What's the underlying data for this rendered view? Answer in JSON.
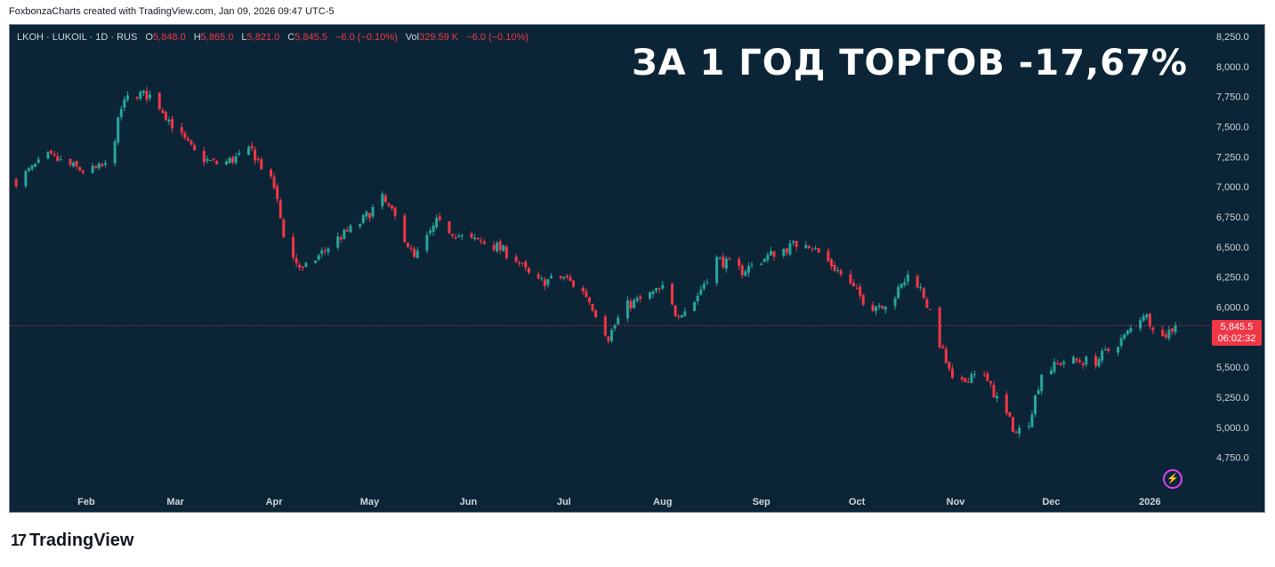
{
  "credit": "FoxbonzaCharts created with TradingView.com, Jan 09, 2026 09:47 UTC-5",
  "legend": {
    "symbol": "LKOH · LUKOIL · 1D · RUS",
    "o_label": "O",
    "o_value": "5,848.0",
    "h_label": "H",
    "h_value": "5,865.0",
    "l_label": "L",
    "l_value": "5,821.0",
    "c_label": "C",
    "c_value": "5,845.5",
    "change": "−6.0 (−0.10%)",
    "vol_label": "Vol",
    "vol_value": "329.59 K",
    "vol_change": "−6.0 (−0.10%)"
  },
  "headline": "ЗА 1 ГОД ТОРГОВ -17,67%",
  "price_tag": {
    "price": "5,845.5",
    "countdown": "06:02:32"
  },
  "footer": {
    "brand": "TradingView"
  },
  "colors": {
    "up": "#26a69a",
    "down": "#f23645",
    "background": "#0b2537",
    "text": "#d1d4dc",
    "bolt": "#e040fb"
  },
  "icons": {
    "bolt": "lightning-icon",
    "logo": "tradingview-logo-icon"
  },
  "chart_data": {
    "type": "candlestick",
    "title": "",
    "ylim": [
      4650,
      8350
    ],
    "y_ticks": [
      "8,250.0",
      "8,000.0",
      "7,750.0",
      "7,500.0",
      "7,250.0",
      "7,000.0",
      "6,750.0",
      "6,500.0",
      "6,250.0",
      "6,000.0",
      "5,750.0",
      "5,500.0",
      "5,250.0",
      "5,000.0",
      "4,750.0"
    ],
    "x_ticks": [
      "Feb",
      "Mar",
      "Apr",
      "May",
      "Jun",
      "Jul",
      "Aug",
      "Sep",
      "Oct",
      "Nov",
      "Dec",
      "2026"
    ],
    "last_price": 5845.5,
    "close_path": [
      [
        "2025-01-10",
        7050
      ],
      [
        "2025-01-20",
        7250
      ],
      [
        "2025-01-25",
        7200
      ],
      [
        "2025-02-01",
        7120
      ],
      [
        "2025-02-08",
        7180
      ],
      [
        "2025-02-12",
        7650
      ],
      [
        "2025-02-15",
        7780
      ],
      [
        "2025-02-22",
        7750
      ],
      [
        "2025-03-01",
        7480
      ],
      [
        "2025-03-08",
        7250
      ],
      [
        "2025-03-15",
        7180
      ],
      [
        "2025-03-25",
        7300
      ],
      [
        "2025-04-01",
        7000
      ],
      [
        "2025-04-05",
        6480
      ],
      [
        "2025-04-10",
        6300
      ],
      [
        "2025-04-20",
        6550
      ],
      [
        "2025-04-28",
        6700
      ],
      [
        "2025-05-05",
        6900
      ],
      [
        "2025-05-10",
        6700
      ],
      [
        "2025-05-15",
        6400
      ],
      [
        "2025-05-22",
        6700
      ],
      [
        "2025-06-01",
        6550
      ],
      [
        "2025-06-05",
        6550
      ],
      [
        "2025-06-10",
        6500
      ],
      [
        "2025-06-16",
        6400
      ],
      [
        "2025-06-22",
        6200
      ],
      [
        "2025-07-01",
        6250
      ],
      [
        "2025-07-08",
        6100
      ],
      [
        "2025-07-15",
        5750
      ],
      [
        "2025-07-20",
        6000
      ],
      [
        "2025-08-01",
        6150
      ],
      [
        "2025-08-05",
        5950
      ],
      [
        "2025-08-10",
        6000
      ],
      [
        "2025-08-18",
        6400
      ],
      [
        "2025-08-26",
        6300
      ],
      [
        "2025-09-05",
        6450
      ],
      [
        "2025-09-15",
        6550
      ],
      [
        "2025-09-25",
        6300
      ],
      [
        "2025-10-05",
        6000
      ],
      [
        "2025-10-12",
        6050
      ],
      [
        "2025-10-18",
        6300
      ],
      [
        "2025-10-22",
        6100
      ],
      [
        "2025-10-27",
        5700
      ],
      [
        "2025-11-01",
        5300
      ],
      [
        "2025-11-08",
        5500
      ],
      [
        "2025-11-15",
        5200
      ],
      [
        "2025-11-20",
        4950
      ],
      [
        "2025-11-24",
        5050
      ],
      [
        "2025-11-28",
        5450
      ],
      [
        "2025-12-05",
        5550
      ],
      [
        "2025-12-15",
        5550
      ],
      [
        "2025-12-24",
        5750
      ],
      [
        "2025-12-30",
        5950
      ],
      [
        "2026-01-05",
        5750
      ],
      [
        "2026-01-09",
        5845.5
      ]
    ]
  }
}
